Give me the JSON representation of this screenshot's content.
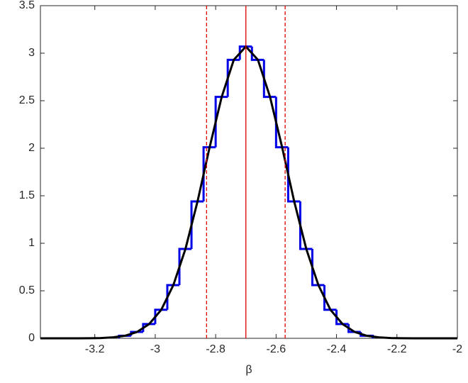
{
  "chart_data": {
    "type": "histogram",
    "xlabel": "β",
    "xlim": [
      -3.38,
      -2
    ],
    "ylim": [
      0,
      3.5
    ],
    "xticks": [
      -3.2,
      -3,
      -2.8,
      -2.6,
      -2.4,
      -2.2,
      -2
    ],
    "yticks": [
      0,
      0.5,
      1,
      1.5,
      2,
      2.5,
      3,
      3.5
    ],
    "bins": [
      -3.12,
      -3.08,
      -3.04,
      -3.0,
      -2.96,
      -2.92,
      -2.88,
      -2.84,
      -2.8,
      -2.76,
      -2.72,
      -2.68,
      -2.64,
      -2.6,
      -2.56,
      -2.52,
      -2.48,
      -2.44,
      -2.4,
      -2.36,
      -2.32,
      -2.28
    ],
    "counts": [
      0.027,
      0.067,
      0.15,
      0.3,
      0.56,
      0.94,
      1.44,
      2.01,
      2.54,
      2.93,
      3.07,
      2.93,
      2.54,
      2.01,
      1.44,
      0.94,
      0.56,
      0.3,
      0.15,
      0.067,
      0.027
    ],
    "color": "#0000e6",
    "curve": {
      "color": "#000000",
      "x": [
        -3.38,
        -3.34,
        -3.3,
        -3.26,
        -3.22,
        -3.18,
        -3.14,
        -3.1,
        -3.06,
        -3.02,
        -2.98,
        -2.94,
        -2.9,
        -2.86,
        -2.82,
        -2.78,
        -2.74,
        -2.7,
        -2.66,
        -2.62,
        -2.58,
        -2.54,
        -2.5,
        -2.46,
        -2.42,
        -2.38,
        -2.34,
        -2.3,
        -2.26,
        -2.22,
        -2.18,
        -2.14,
        -2.1,
        -2.06,
        -2.02,
        -2.0
      ],
      "values": [
        0,
        0,
        0,
        0,
        0.001,
        0.003,
        0.01,
        0.027,
        0.067,
        0.15,
        0.3,
        0.56,
        0.94,
        1.44,
        2.01,
        2.54,
        2.93,
        3.07,
        2.93,
        2.54,
        2.01,
        1.44,
        0.94,
        0.56,
        0.3,
        0.15,
        0.067,
        0.027,
        0.01,
        0.003,
        0.001,
        0,
        0,
        0,
        0,
        0
      ]
    },
    "mean": -2.7,
    "interval": [
      -2.83,
      -2.57
    ],
    "line_color": "#e00000"
  }
}
